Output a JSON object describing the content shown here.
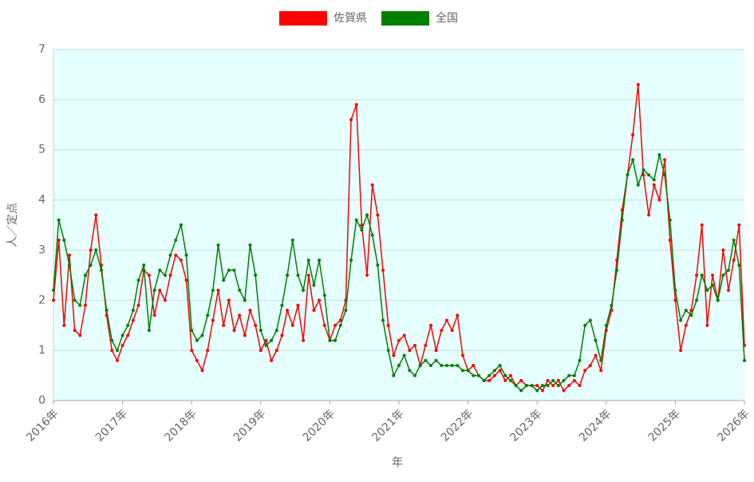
{
  "chart_data": {
    "type": "line",
    "xlabel": "年",
    "ylabel": "人／定点",
    "categories": [
      "2016年",
      null,
      null,
      null,
      null,
      null,
      null,
      null,
      null,
      null,
      null,
      null,
      null,
      "2017年",
      null,
      null,
      null,
      null,
      null,
      null,
      null,
      null,
      null,
      null,
      null,
      null,
      "2018年",
      null,
      null,
      null,
      null,
      null,
      null,
      null,
      null,
      null,
      null,
      null,
      null,
      "2019年",
      null,
      null,
      null,
      null,
      null,
      null,
      null,
      null,
      null,
      null,
      null,
      null,
      "2020年",
      null,
      null,
      null,
      null,
      null,
      null,
      null,
      null,
      null,
      null,
      null,
      null,
      "2021年",
      null,
      null,
      null,
      null,
      null,
      null,
      null,
      null,
      null,
      null,
      null,
      null,
      "2022年",
      null,
      null,
      null,
      null,
      null,
      null,
      null,
      null,
      null,
      null,
      null,
      null,
      "2023年",
      null,
      null,
      null,
      null,
      null,
      null,
      null,
      null,
      null,
      null,
      null,
      null,
      "2024年",
      null,
      null,
      null,
      null,
      null,
      null,
      null,
      null,
      null,
      null,
      null,
      null,
      "2025年",
      null,
      null,
      null,
      null,
      null,
      null,
      null,
      null,
      null,
      null,
      null,
      null,
      "2026年"
    ],
    "series": [
      {
        "name": "佐賀県",
        "color": "#ff0000",
        "values": [
          2.0,
          3.2,
          1.5,
          2.9,
          1.4,
          1.3,
          1.9,
          3.0,
          3.7,
          2.7,
          1.7,
          1.0,
          0.8,
          1.1,
          1.3,
          1.6,
          1.9,
          2.6,
          2.5,
          1.7,
          2.2,
          2.0,
          2.5,
          2.9,
          2.8,
          2.4,
          1.0,
          0.8,
          0.6,
          1.0,
          1.6,
          2.2,
          1.5,
          2.0,
          1.4,
          1.7,
          1.3,
          1.8,
          1.5,
          1.0,
          1.2,
          0.8,
          1.0,
          1.3,
          1.8,
          1.5,
          1.9,
          1.2,
          2.5,
          1.8,
          2.0,
          1.5,
          1.2,
          1.5,
          1.6,
          2.0,
          5.6,
          5.9,
          3.5,
          2.5,
          4.3,
          3.7,
          2.6,
          1.5,
          0.9,
          1.2,
          1.3,
          1.0,
          1.1,
          0.7,
          1.1,
          1.5,
          1.0,
          1.4,
          1.6,
          1.4,
          1.7,
          0.9,
          0.6,
          0.7,
          0.5,
          0.4,
          0.4,
          0.5,
          0.6,
          0.4,
          0.5,
          0.3,
          0.4,
          0.3,
          0.3,
          0.3,
          0.2,
          0.4,
          0.3,
          0.4,
          0.2,
          0.3,
          0.4,
          0.3,
          0.6,
          0.7,
          0.9,
          0.6,
          1.4,
          1.8,
          2.8,
          3.8,
          4.5,
          5.3,
          6.3,
          4.5,
          3.7,
          4.3,
          4.0,
          4.8,
          3.2,
          2.0,
          1.0,
          1.5,
          1.8,
          2.5,
          3.5,
          1.5,
          2.5,
          2.0,
          3.0,
          2.2,
          2.8,
          3.5,
          1.1
        ]
      },
      {
        "name": "全国",
        "color": "#008000",
        "values": [
          2.2,
          3.6,
          3.2,
          2.7,
          2.0,
          1.9,
          2.5,
          2.7,
          3.0,
          2.6,
          1.8,
          1.2,
          1.0,
          1.3,
          1.5,
          1.8,
          2.4,
          2.7,
          1.4,
          2.2,
          2.6,
          2.5,
          2.9,
          3.2,
          3.5,
          2.9,
          1.4,
          1.2,
          1.3,
          1.7,
          2.2,
          3.1,
          2.4,
          2.6,
          2.6,
          2.2,
          2.0,
          3.1,
          2.5,
          1.4,
          1.1,
          1.2,
          1.4,
          1.9,
          2.5,
          3.2,
          2.5,
          2.2,
          2.8,
          2.3,
          2.8,
          2.1,
          1.2,
          1.2,
          1.5,
          1.8,
          2.8,
          3.6,
          3.4,
          3.7,
          3.3,
          2.7,
          1.6,
          1.0,
          0.5,
          0.7,
          0.9,
          0.6,
          0.5,
          0.7,
          0.8,
          0.7,
          0.8,
          0.7,
          0.7,
          0.7,
          0.7,
          0.6,
          0.6,
          0.5,
          0.5,
          0.4,
          0.5,
          0.6,
          0.7,
          0.5,
          0.4,
          0.3,
          0.2,
          0.3,
          0.3,
          0.2,
          0.3,
          0.3,
          0.4,
          0.3,
          0.4,
          0.5,
          0.5,
          0.8,
          1.5,
          1.6,
          1.2,
          0.8,
          1.5,
          1.9,
          2.6,
          3.6,
          4.5,
          4.8,
          4.3,
          4.6,
          4.5,
          4.4,
          4.9,
          4.5,
          3.6,
          2.2,
          1.6,
          1.8,
          1.7,
          2.0,
          2.5,
          2.2,
          2.3,
          2.0,
          2.5,
          2.6,
          3.2,
          2.7,
          0.8
        ]
      }
    ],
    "ylim": [
      0,
      7
    ],
    "yticks": [
      0,
      1,
      2,
      3,
      4,
      5,
      6,
      7
    ],
    "grid": true,
    "legend": "top"
  }
}
